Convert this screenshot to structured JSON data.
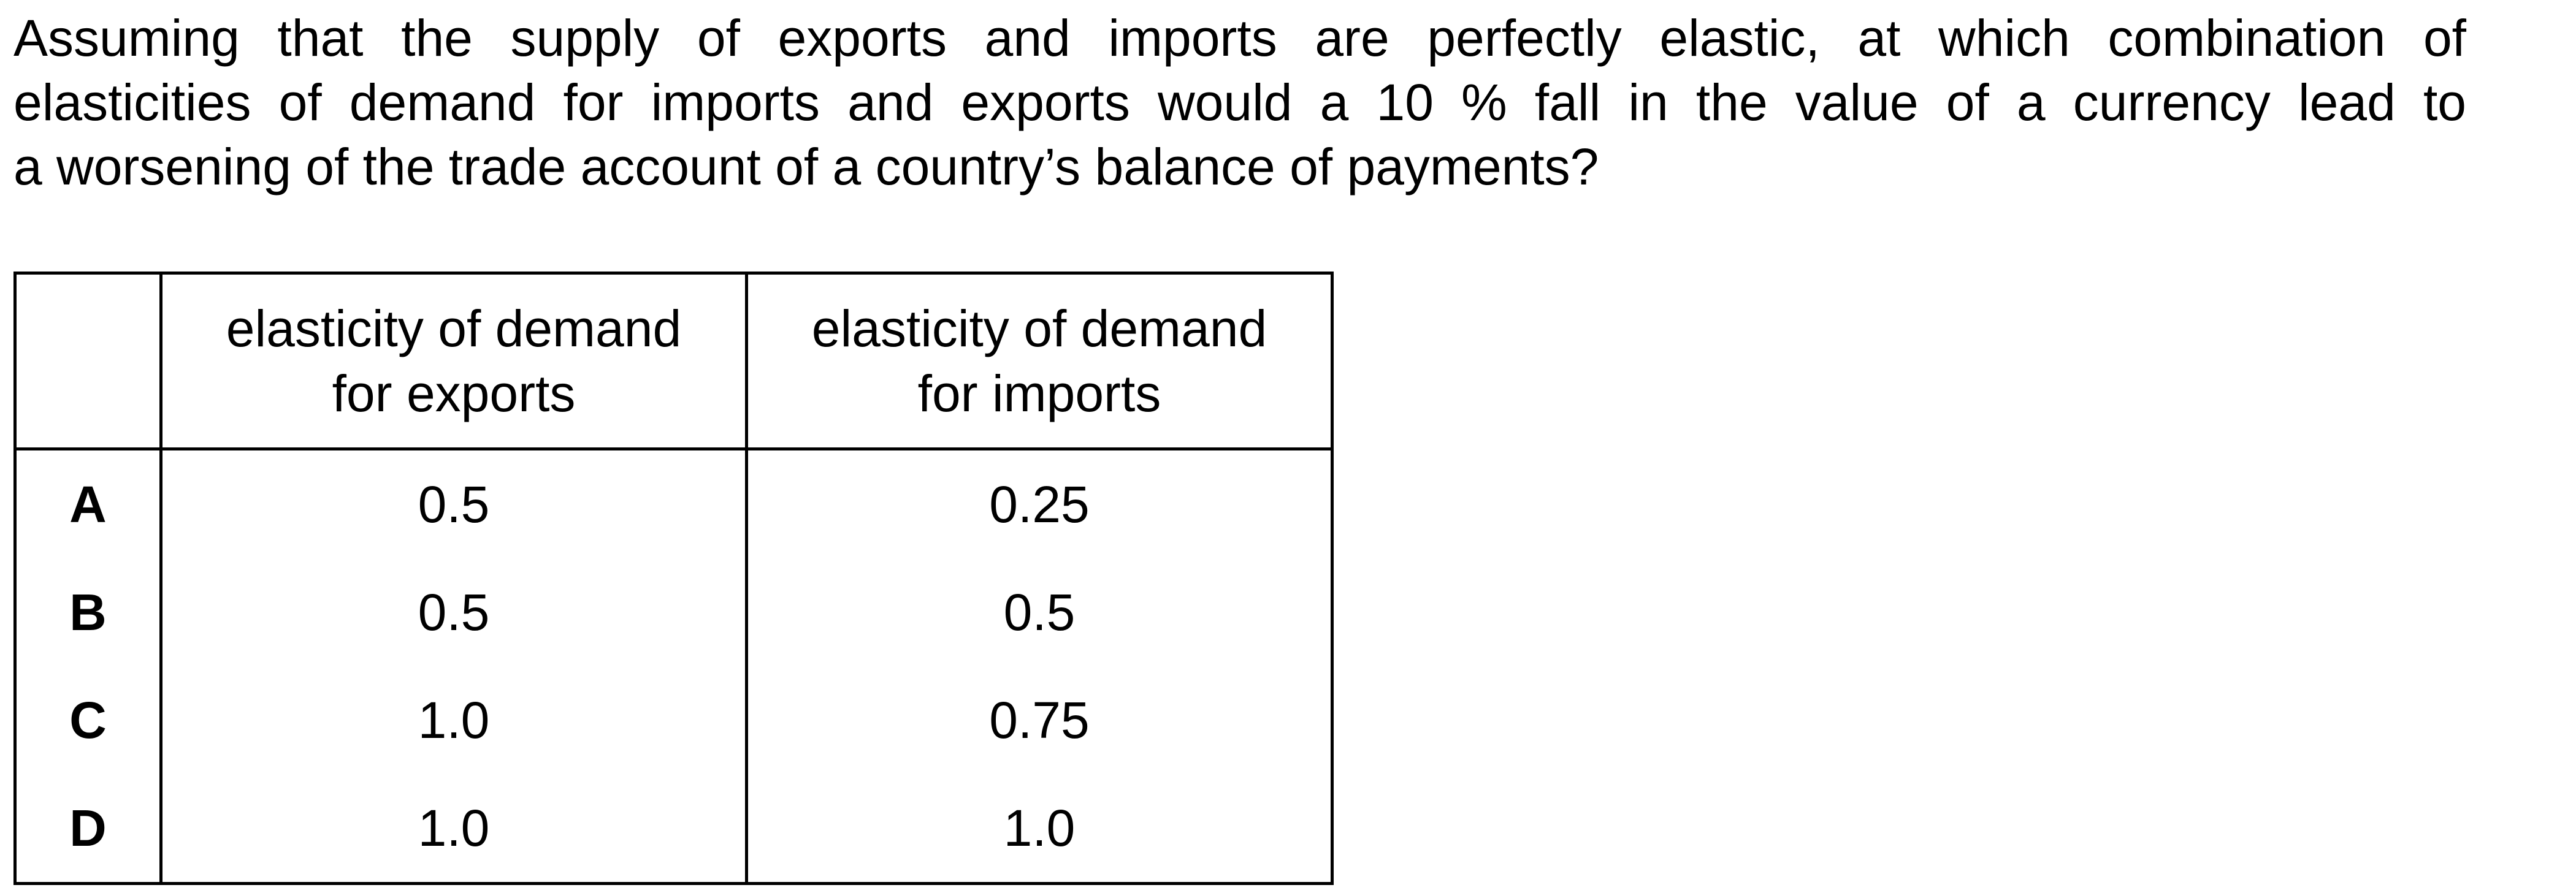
{
  "question": {
    "lines": [
      "Assuming that the supply of exports and imports are perfectly elastic, at which combination of",
      "elasticities of demand for imports and exports would a 10 % fall in the value of a currency lead to",
      "a worsening of the trade account of a country’s balance of payments?"
    ]
  },
  "table": {
    "headers": {
      "key": "",
      "exports_line1": "elasticity of demand",
      "exports_line2": "for exports",
      "imports_line1": "elasticity of demand",
      "imports_line2": "for imports"
    },
    "rows": [
      {
        "key": "A",
        "exports": "0.5",
        "imports": "0.25"
      },
      {
        "key": "B",
        "exports": "0.5",
        "imports": "0.5"
      },
      {
        "key": "C",
        "exports": "1.0",
        "imports": "0.75"
      },
      {
        "key": "D",
        "exports": "1.0",
        "imports": "1.0"
      }
    ]
  }
}
